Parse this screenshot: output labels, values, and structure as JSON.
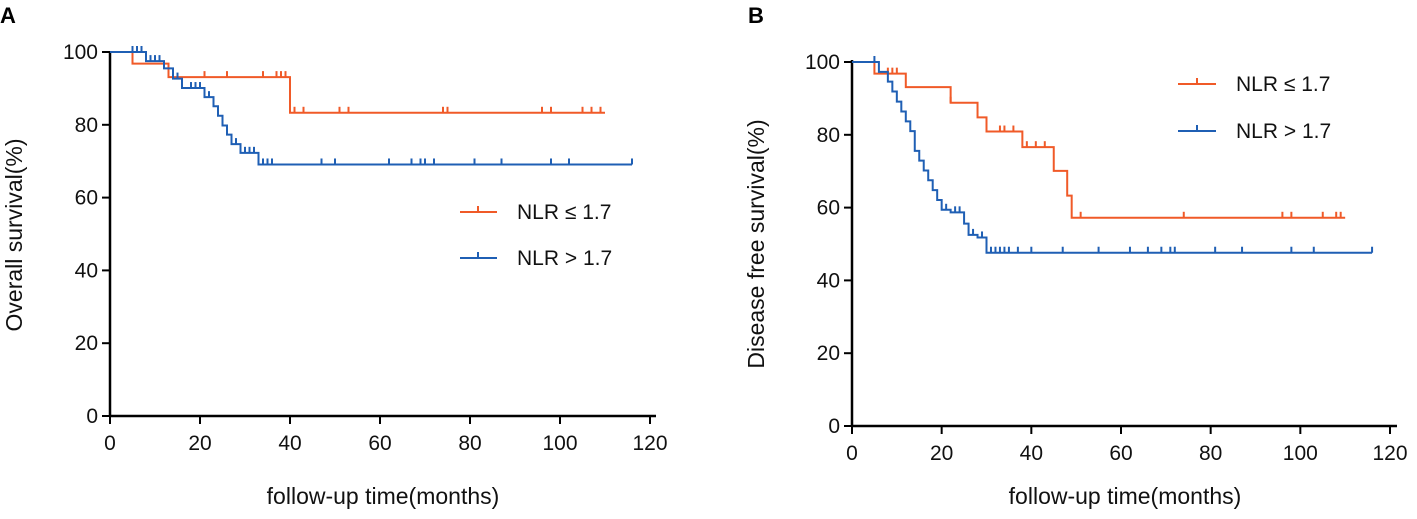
{
  "chart_data": [
    {
      "type": "line",
      "panel_label": "A",
      "xlabel": "follow-up time(months)",
      "ylabel": "Overall survival(%)",
      "xlim": [
        0,
        120
      ],
      "ylim": [
        0,
        100
      ],
      "x_ticks": [
        0,
        20,
        40,
        60,
        80,
        100,
        120
      ],
      "y_ticks": [
        0,
        20,
        40,
        60,
        80,
        100
      ],
      "legend_position": "right-middle",
      "series": [
        {
          "name": "NLR ≤ 1.7",
          "color": "#f05a28",
          "steps": [
            [
              0,
              100
            ],
            [
              5,
              96.8
            ],
            [
              13,
              93.1
            ],
            [
              39,
              93.1
            ],
            [
              40,
              83.3
            ],
            [
              110,
              83.3
            ]
          ],
          "censor_times": [
            21,
            26,
            34,
            37,
            38,
            39,
            41,
            43,
            51,
            53,
            74,
            75,
            96,
            98,
            105,
            107,
            109
          ]
        },
        {
          "name": "NLR > 1.7",
          "color": "#1f5fb4",
          "steps": [
            [
              0,
              100
            ],
            [
              8,
              97.5
            ],
            [
              12,
              95.5
            ],
            [
              14,
              92.7
            ],
            [
              16,
              90.1
            ],
            [
              21,
              87.6
            ],
            [
              23,
              85.1
            ],
            [
              24,
              82.5
            ],
            [
              25,
              79.8
            ],
            [
              26,
              77.3
            ],
            [
              27,
              74.7
            ],
            [
              29,
              72.3
            ],
            [
              33,
              69.1
            ],
            [
              116,
              69.1
            ]
          ],
          "censor_times": [
            5,
            6,
            7,
            9,
            10,
            11,
            15,
            18,
            19,
            20,
            22,
            28,
            30,
            31,
            32,
            34,
            35,
            36,
            47,
            50,
            62,
            67,
            69,
            70,
            72,
            81,
            87,
            98,
            102,
            116
          ]
        }
      ]
    },
    {
      "type": "line",
      "panel_label": "B",
      "xlabel": "follow-up time(months)",
      "ylabel": "Disease free survival(%)",
      "xlim": [
        0,
        120
      ],
      "ylim": [
        0,
        100
      ],
      "x_ticks": [
        0,
        20,
        40,
        60,
        80,
        100,
        120
      ],
      "y_ticks": [
        0,
        20,
        40,
        60,
        80,
        100
      ],
      "legend_position": "top-right",
      "series": [
        {
          "name": "NLR ≤ 1.7",
          "color": "#f05a28",
          "steps": [
            [
              0,
              100
            ],
            [
              5,
              96.8
            ],
            [
              12,
              93.1
            ],
            [
              22,
              88.8
            ],
            [
              28,
              84.8
            ],
            [
              30,
              80.9
            ],
            [
              37,
              80.9
            ],
            [
              38,
              76.6
            ],
            [
              44,
              76.6
            ],
            [
              45,
              70.1
            ],
            [
              48,
              63.3
            ],
            [
              49,
              57.2
            ],
            [
              110,
              57.2
            ]
          ],
          "censor_times": [
            8,
            9,
            10,
            22,
            33,
            34,
            36,
            39,
            41,
            43,
            51,
            74,
            96,
            98,
            105,
            108,
            109
          ]
        },
        {
          "name": "NLR > 1.7",
          "color": "#1f5fb4",
          "steps": [
            [
              0,
              100
            ],
            [
              6,
              97.3
            ],
            [
              8,
              94.6
            ],
            [
              9,
              91.9
            ],
            [
              10,
              89.1
            ],
            [
              11,
              86.4
            ],
            [
              12,
              83.7
            ],
            [
              13,
              81
            ],
            [
              14,
              75.6
            ],
            [
              15,
              72.9
            ],
            [
              16,
              70.2
            ],
            [
              17,
              67.5
            ],
            [
              18,
              64.8
            ],
            [
              19,
              62.1
            ],
            [
              20,
              59.4
            ],
            [
              22,
              58.7
            ],
            [
              25,
              55.6
            ],
            [
              26,
              52.5
            ],
            [
              28,
              51.8
            ],
            [
              30,
              47.6
            ],
            [
              116,
              47.6
            ]
          ],
          "censor_times": [
            5,
            21,
            23,
            24,
            27,
            29,
            31,
            32,
            33,
            34,
            35,
            37,
            40,
            47,
            55,
            62,
            66,
            69,
            71,
            72,
            81,
            87,
            98,
            103,
            116
          ]
        }
      ]
    }
  ]
}
